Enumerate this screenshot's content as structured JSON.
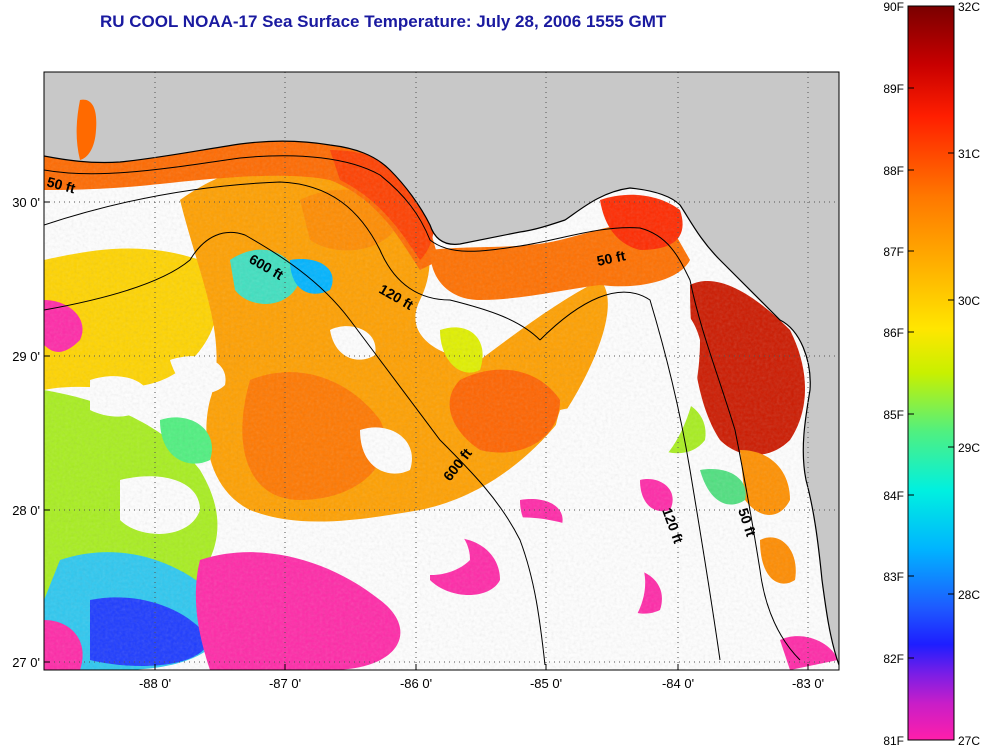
{
  "title": "RU COOL  NOAA-17  Sea Surface Temperature:  July 28, 2006 1555 GMT",
  "map": {
    "land_color": "#c8c8c8",
    "cloud_color": "#ffffff",
    "lon_ticks": [
      "-88 0'",
      "-87 0'",
      "-86 0'",
      "-85 0'",
      "-84 0'",
      "-83 0'"
    ],
    "lat_ticks": [
      "30 0'",
      "29 0'",
      "28 0'",
      "27 0'"
    ],
    "contours": [
      {
        "name": "50-ft-contour",
        "label": "50 ft"
      },
      {
        "name": "120-ft-contour",
        "label": "120 ft"
      },
      {
        "name": "600-ft-contour",
        "label": "600 ft"
      }
    ],
    "contour_labels": [
      {
        "text": "50 ft"
      },
      {
        "text": "600 ft"
      },
      {
        "text": "120 ft"
      },
      {
        "text": "50 ft"
      },
      {
        "text": "600 ft"
      },
      {
        "text": "120 ft"
      },
      {
        "text": "50 ft"
      }
    ]
  },
  "colorbar": {
    "fahrenheit_labels": [
      "90F",
      "89F",
      "88F",
      "87F",
      "86F",
      "85F",
      "84F",
      "83F",
      "82F",
      "81F"
    ],
    "celsius_labels": [
      "32C",
      "31C",
      "30C",
      "29C",
      "28C",
      "27C"
    ],
    "colors": [
      "#8b0000",
      "#e10000",
      "#ff3200",
      "#ff7a00",
      "#ffb000",
      "#ffe600",
      "#c8f000",
      "#50f080",
      "#00f0e0",
      "#00b4ff",
      "#1e5aff",
      "#1e1eff",
      "#7a1ee6",
      "#c81ec8",
      "#ff1eaa"
    ]
  }
}
